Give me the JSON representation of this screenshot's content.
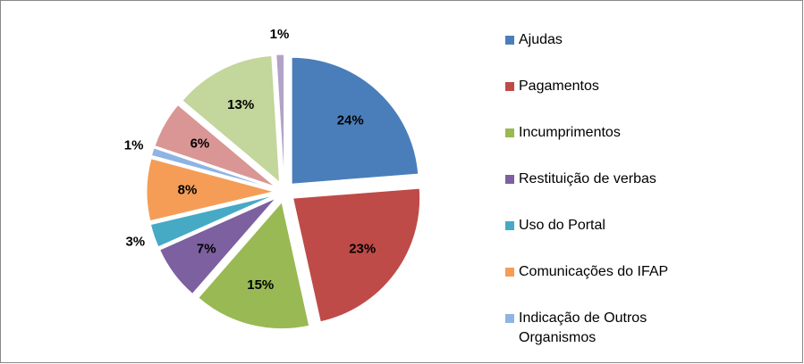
{
  "chart_data": {
    "type": "pie",
    "categories": [
      "Ajudas",
      "Pagamentos",
      "Incumprimentos",
      "Restituição de verbas",
      "Uso do Portal",
      "Comunicações do IFAP",
      "Indicação de Outros Organismos",
      null,
      null,
      null
    ],
    "values": [
      24,
      23,
      15,
      7,
      3,
      8,
      1,
      6,
      13,
      1
    ],
    "value_labels": [
      "24%",
      "23%",
      "15%",
      "7%",
      "3%",
      "8%",
      "1%",
      "6%",
      "13%",
      "1%"
    ],
    "colors": [
      "#4a7ebb",
      "#be4b48",
      "#98b954",
      "#7d60a0",
      "#46aac5",
      "#f59d56",
      "#8eb4e3",
      "#d99694",
      "#c3d69b",
      "#b3a2c7"
    ],
    "legend": "right"
  }
}
